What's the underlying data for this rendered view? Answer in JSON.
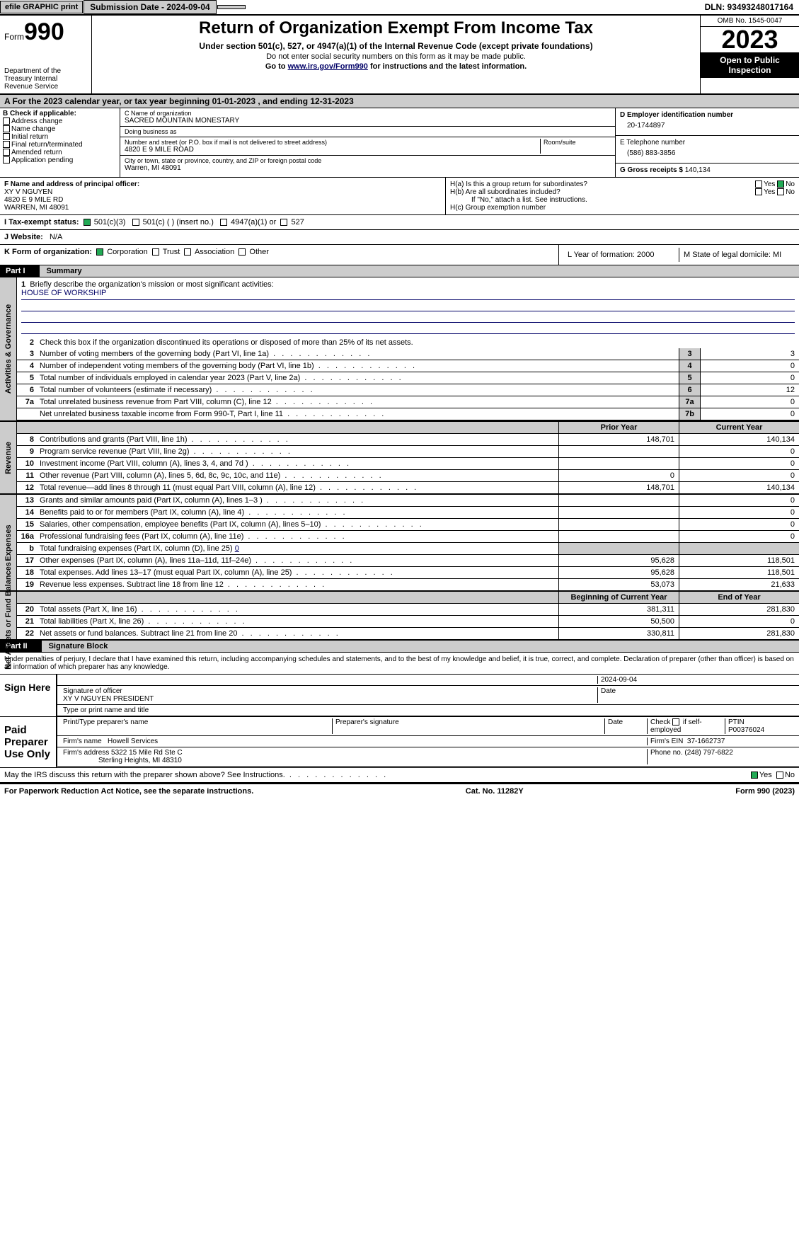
{
  "topbar": {
    "efile": "efile GRAPHIC print",
    "submission": "Submission Date - 2024-09-04",
    "dln": "DLN: 93493248017164"
  },
  "header": {
    "form_label": "Form",
    "form_no": "990",
    "dept": "Department of the Treasury Internal Revenue Service",
    "title": "Return of Organization Exempt From Income Tax",
    "subtitle": "Under section 501(c), 527, or 4947(a)(1) of the Internal Revenue Code (except private foundations)",
    "note1": "Do not enter social security numbers on this form as it may be made public.",
    "note2_pre": "Go to ",
    "note2_link": "www.irs.gov/Form990",
    "note2_post": " for instructions and the latest information.",
    "omb": "OMB No. 1545-0047",
    "year": "2023",
    "open": "Open to Public Inspection"
  },
  "lineA": "A For the 2023 calendar year, or tax year beginning 01-01-2023   , and ending 12-31-2023",
  "boxB": {
    "title": "B Check if applicable:",
    "items": [
      "Address change",
      "Name change",
      "Initial return",
      "Final return/terminated",
      "Amended return",
      "Application pending"
    ]
  },
  "boxC": {
    "name_lbl": "C Name of organization",
    "name": "SACRED MOUNTAIN MONESTARY",
    "dba_lbl": "Doing business as",
    "addr_lbl": "Number and street (or P.O. box if mail is not delivered to street address)",
    "room_lbl": "Room/suite",
    "addr": "4820 E 9 MILE ROAD",
    "city_lbl": "City or town, state or province, country, and ZIP or foreign postal code",
    "city": "Warren, MI  48091"
  },
  "boxD": {
    "lbl": "D Employer identification number",
    "val": "20-1744897"
  },
  "boxE": {
    "lbl": "E Telephone number",
    "val": "(586) 883-3856"
  },
  "boxG": {
    "lbl": "G Gross receipts $",
    "val": "140,134"
  },
  "boxF": {
    "lbl": "F  Name and address of principal officer:",
    "name": "XY V NGUYEN",
    "addr1": "4820 E 9 MILE RD",
    "addr2": "WARREN, MI  48091"
  },
  "boxH": {
    "a": "H(a)  Is this a group return for subordinates?",
    "b": "H(b)  Are all subordinates included?",
    "bnote": "If \"No,\" attach a list. See instructions.",
    "c": "H(c)  Group exemption number"
  },
  "boxI": {
    "lbl": "I    Tax-exempt status:",
    "c3": "501(c)(3)",
    "c": "501(c) (  ) (insert no.)",
    "a": "4947(a)(1) or",
    "s": "527"
  },
  "boxJ": {
    "lbl": "J    Website:",
    "val": "N/A"
  },
  "boxK": {
    "lbl": "K Form of organization:",
    "corp": "Corporation",
    "trust": "Trust",
    "assoc": "Association",
    "other": "Other"
  },
  "boxL": "L Year of formation: 2000",
  "boxM": "M State of legal domicile: MI",
  "part1": {
    "hdr": "Part I",
    "ttl": "Summary"
  },
  "s1": {
    "label": "Activities & Governance",
    "l1": "Briefly describe the organization's mission or most significant activities:",
    "l1v": "HOUSE OF WORKSHIP",
    "l2": "Check this box      if the organization discontinued its operations or disposed of more than 25% of its net assets.",
    "rows": [
      {
        "n": "3",
        "t": "Number of voting members of the governing body (Part VI, line 1a)",
        "b": "3",
        "v": "3"
      },
      {
        "n": "4",
        "t": "Number of independent voting members of the governing body (Part VI, line 1b)",
        "b": "4",
        "v": "0"
      },
      {
        "n": "5",
        "t": "Total number of individuals employed in calendar year 2023 (Part V, line 2a)",
        "b": "5",
        "v": "0"
      },
      {
        "n": "6",
        "t": "Total number of volunteers (estimate if necessary)",
        "b": "6",
        "v": "12"
      },
      {
        "n": "7a",
        "t": "Total unrelated business revenue from Part VIII, column (C), line 12",
        "b": "7a",
        "v": "0"
      },
      {
        "n": "",
        "t": "Net unrelated business taxable income from Form 990-T, Part I, line 11",
        "b": "7b",
        "v": "0"
      }
    ]
  },
  "s2": {
    "label": "Revenue",
    "hdr_prior": "Prior Year",
    "hdr_curr": "Current Year",
    "rows": [
      {
        "n": "8",
        "t": "Contributions and grants (Part VIII, line 1h)",
        "p": "148,701",
        "c": "140,134"
      },
      {
        "n": "9",
        "t": "Program service revenue (Part VIII, line 2g)",
        "p": "",
        "c": "0"
      },
      {
        "n": "10",
        "t": "Investment income (Part VIII, column (A), lines 3, 4, and 7d )",
        "p": "",
        "c": "0"
      },
      {
        "n": "11",
        "t": "Other revenue (Part VIII, column (A), lines 5, 6d, 8c, 9c, 10c, and 11e)",
        "p": "0",
        "c": "0"
      },
      {
        "n": "12",
        "t": "Total revenue—add lines 8 through 11 (must equal Part VIII, column (A), line 12)",
        "p": "148,701",
        "c": "140,134"
      }
    ]
  },
  "s3": {
    "label": "Expenses",
    "rows": [
      {
        "n": "13",
        "t": "Grants and similar amounts paid (Part IX, column (A), lines 1–3 )",
        "p": "",
        "c": "0"
      },
      {
        "n": "14",
        "t": "Benefits paid to or for members (Part IX, column (A), line 4)",
        "p": "",
        "c": "0"
      },
      {
        "n": "15",
        "t": "Salaries, other compensation, employee benefits (Part IX, column (A), lines 5–10)",
        "p": "",
        "c": "0"
      },
      {
        "n": "16a",
        "t": "Professional fundraising fees (Part IX, column (A), line 11e)",
        "p": "",
        "c": "0"
      }
    ],
    "l16b_n": "b",
    "l16b": "Total fundraising expenses (Part IX, column (D), line 25) ",
    "l16b_v": "0",
    "rows2": [
      {
        "n": "17",
        "t": "Other expenses (Part IX, column (A), lines 11a–11d, 11f–24e)",
        "p": "95,628",
        "c": "118,501"
      },
      {
        "n": "18",
        "t": "Total expenses. Add lines 13–17 (must equal Part IX, column (A), line 25)",
        "p": "95,628",
        "c": "118,501"
      },
      {
        "n": "19",
        "t": "Revenue less expenses. Subtract line 18 from line 12",
        "p": "53,073",
        "c": "21,633"
      }
    ]
  },
  "s4": {
    "label": "Net Assets or Fund Balances",
    "hdr_begin": "Beginning of Current Year",
    "hdr_end": "End of Year",
    "rows": [
      {
        "n": "20",
        "t": "Total assets (Part X, line 16)",
        "p": "381,311",
        "c": "281,830"
      },
      {
        "n": "21",
        "t": "Total liabilities (Part X, line 26)",
        "p": "50,500",
        "c": "0"
      },
      {
        "n": "22",
        "t": "Net assets or fund balances. Subtract line 21 from line 20",
        "p": "330,811",
        "c": "281,830"
      }
    ]
  },
  "part2": {
    "hdr": "Part II",
    "ttl": "Signature Block"
  },
  "decl": "Under penalties of perjury, I declare that I have examined this return, including accompanying schedules and statements, and to the best of my knowledge and belief, it is true, correct, and complete. Declaration of preparer (other than officer) is based on all information of which preparer has any knowledge.",
  "sign": {
    "here": "Sign Here",
    "date": "2024-09-04",
    "sig_lbl": "Signature of officer",
    "name": "XY V NGUYEN  PRESIDENT",
    "name_lbl": "Type or print name and title",
    "date_lbl": "Date"
  },
  "prep": {
    "lbl": "Paid Preparer Use Only",
    "h1": "Print/Type preparer's name",
    "h2": "Preparer's signature",
    "h3": "Date",
    "h4_pre": "Check ",
    "h4_post": " if self-employed",
    "h5": "PTIN",
    "ptin": "P00376024",
    "firm_lbl": "Firm's name",
    "firm": "Howell Services",
    "ein_lbl": "Firm's EIN",
    "ein": "37-1662737",
    "addr_lbl": "Firm's address",
    "addr": "5322 15 Mile Rd Ste C",
    "addr2": "Sterling Heights, MI  48310",
    "phone_lbl": "Phone no.",
    "phone": "(248) 797-6822"
  },
  "discuss": "May the IRS discuss this return with the preparer shown above? See Instructions.",
  "footer": {
    "l": "For Paperwork Reduction Act Notice, see the separate instructions.",
    "m": "Cat. No. 11282Y",
    "r": "Form 990 (2023)"
  },
  "yes": "Yes",
  "no": "No"
}
